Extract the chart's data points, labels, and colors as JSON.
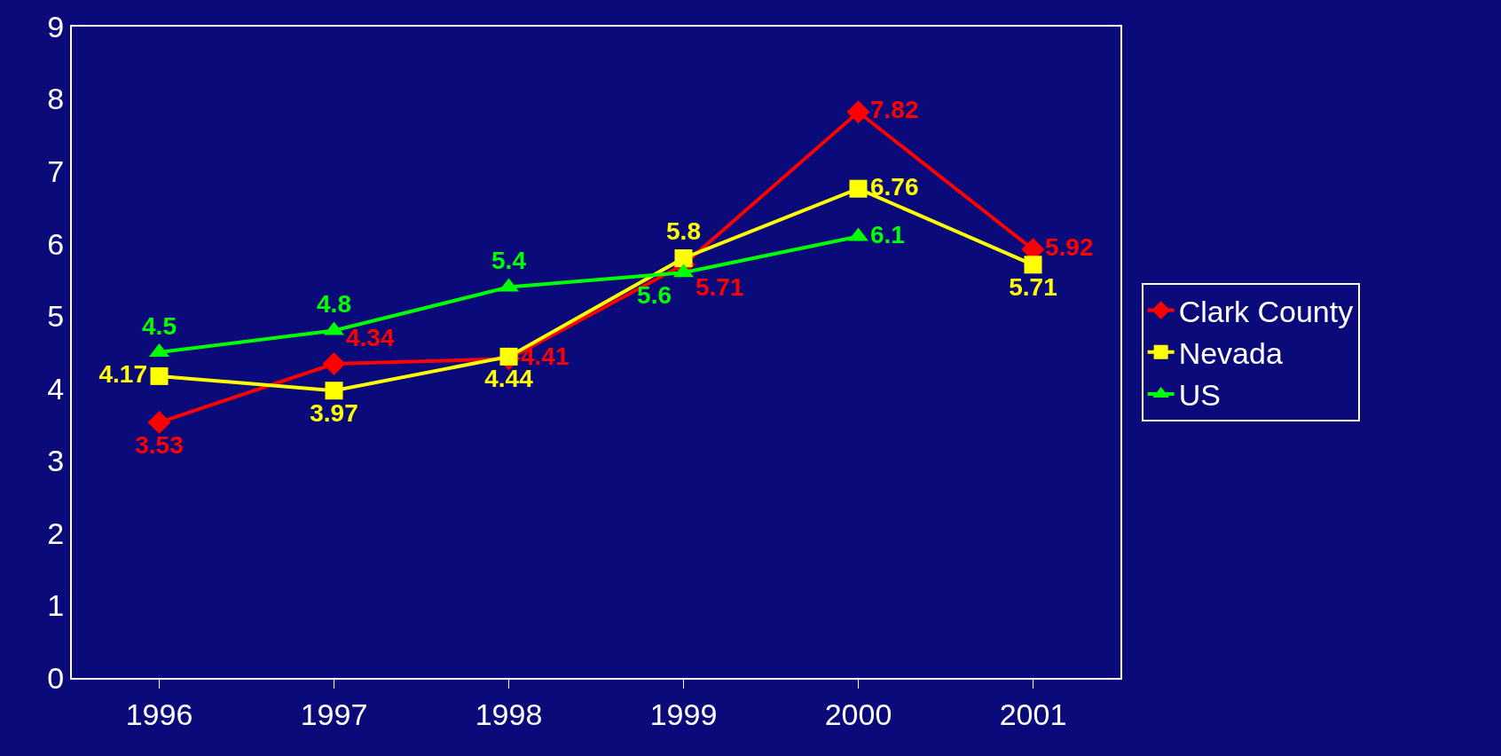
{
  "chart_data": {
    "type": "line",
    "categories": [
      "1996",
      "1997",
      "1998",
      "1999",
      "2000",
      "2001"
    ],
    "series": [
      {
        "name": "Clark County",
        "color": "#ff0000",
        "marker": "diamond",
        "values": [
          3.53,
          4.34,
          4.41,
          5.71,
          7.82,
          5.92
        ]
      },
      {
        "name": "Nevada",
        "color": "#ffff00",
        "marker": "square",
        "values": [
          4.17,
          3.97,
          4.44,
          5.8,
          6.76,
          5.71
        ]
      },
      {
        "name": "US",
        "color": "#00ff00",
        "marker": "triangle",
        "values": [
          4.5,
          4.8,
          5.4,
          5.6,
          6.1,
          null
        ]
      }
    ],
    "ylim": [
      0,
      9
    ],
    "yticks": [
      0,
      1,
      2,
      3,
      4,
      5,
      6,
      7,
      8,
      9
    ],
    "grid": false,
    "legend": "right",
    "data_labels": true,
    "line_style": "solid"
  }
}
